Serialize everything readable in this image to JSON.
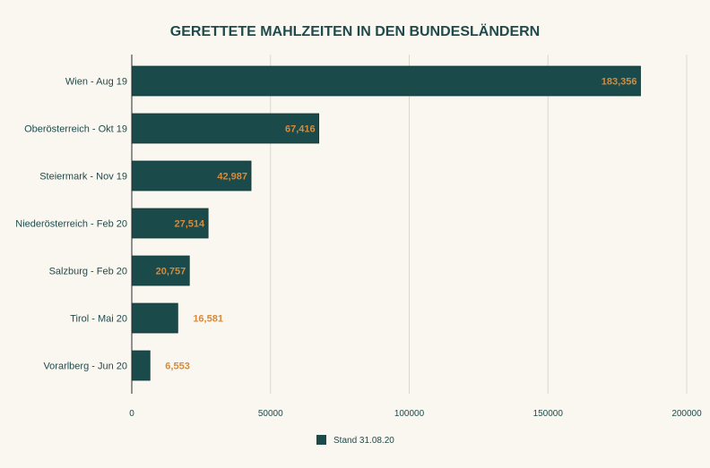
{
  "chart_data": {
    "type": "bar",
    "orientation": "horizontal",
    "title": "GERETTETE MAHLZEITEN IN DEN BUNDESLÄNDERN",
    "categories": [
      "Wien - Aug 19",
      "Oberösterreich - Okt 19",
      "Steiermark - Nov 19",
      "Niederösterreich - Feb 20",
      "Salzburg - Feb 20",
      "Tirol - Mai 20",
      "Vorarlberg - Jun 20"
    ],
    "values": [
      183356,
      67416,
      42987,
      27514,
      20757,
      16581,
      6553
    ],
    "value_labels": [
      "183,356",
      "67,416",
      "42,987",
      "27,514",
      "20,757",
      "16,581",
      "6,553"
    ],
    "series_name": "Stand 31.08.20",
    "xlim": [
      0,
      200000
    ],
    "x_ticks": [
      0,
      50000,
      100000,
      150000,
      200000
    ],
    "x_tick_labels": [
      "0",
      "50000",
      "100000",
      "150000",
      "200000"
    ],
    "xlabel": "",
    "ylabel": "",
    "grid": true,
    "legend_position": "bottom-center"
  },
  "colors": {
    "background": "#faf7f1",
    "bar": "#1a4b4a",
    "bar_stroke": "#0f3635",
    "value_label": "#d68a3c",
    "text": "#1f4a4b",
    "grid": "#dcd8cf",
    "axis": "#2a2a2a"
  }
}
